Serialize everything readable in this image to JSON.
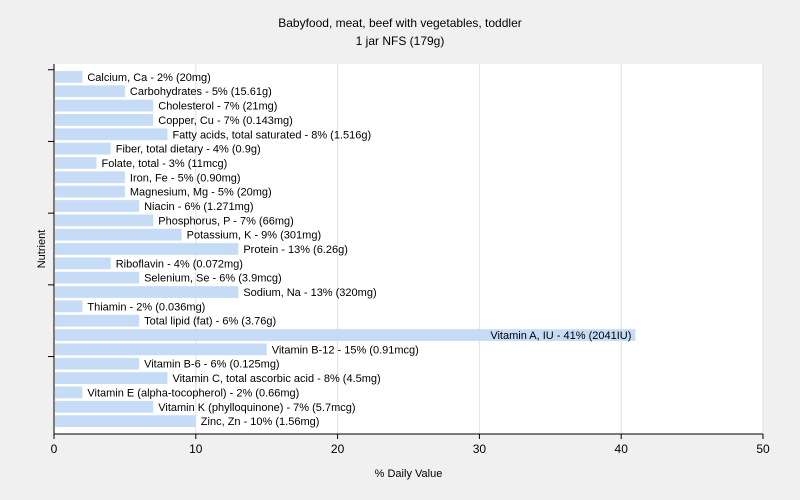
{
  "chart_data": {
    "type": "bar",
    "orientation": "horizontal",
    "title": "Babyfood, meat, beef with vegetables, toddler",
    "subtitle": "1 jar NFS (179g)",
    "xlabel": "% Daily Value",
    "ylabel": "Nutrient",
    "xlim": [
      0,
      50
    ],
    "xticks": [
      0,
      10,
      20,
      30,
      40,
      50
    ],
    "grid": true,
    "bar_color": "#c6dcf6",
    "categories": [
      "Calcium, Ca - 2% (20mg)",
      "Carbohydrates - 5% (15.61g)",
      "Cholesterol - 7% (21mg)",
      "Copper, Cu - 7% (0.143mg)",
      "Fatty acids, total saturated - 8% (1.516g)",
      "Fiber, total dietary - 4% (0.9g)",
      "Folate, total - 3% (11mcg)",
      "Iron, Fe - 5% (0.90mg)",
      "Magnesium, Mg - 5% (20mg)",
      "Niacin - 6% (1.271mg)",
      "Phosphorus, P - 7% (66mg)",
      "Potassium, K - 9% (301mg)",
      "Protein - 13% (6.26g)",
      "Riboflavin - 4% (0.072mg)",
      "Selenium, Se - 6% (3.9mcg)",
      "Sodium, Na - 13% (320mg)",
      "Thiamin - 2% (0.036mg)",
      "Total lipid (fat) - 6% (3.76g)",
      "Vitamin A, IU - 41% (2041IU)",
      "Vitamin B-12 - 15% (0.91mcg)",
      "Vitamin B-6 - 6% (0.125mg)",
      "Vitamin C, total ascorbic acid - 8% (4.5mg)",
      "Vitamin E (alpha-tocopherol) - 2% (0.66mg)",
      "Vitamin K (phylloquinone) - 7% (5.7mcg)",
      "Zinc, Zn - 10% (1.56mg)"
    ],
    "values": [
      2,
      5,
      7,
      7,
      8,
      4,
      3,
      5,
      5,
      6,
      7,
      9,
      13,
      4,
      6,
      13,
      2,
      6,
      41,
      15,
      6,
      8,
      2,
      7,
      10
    ]
  }
}
